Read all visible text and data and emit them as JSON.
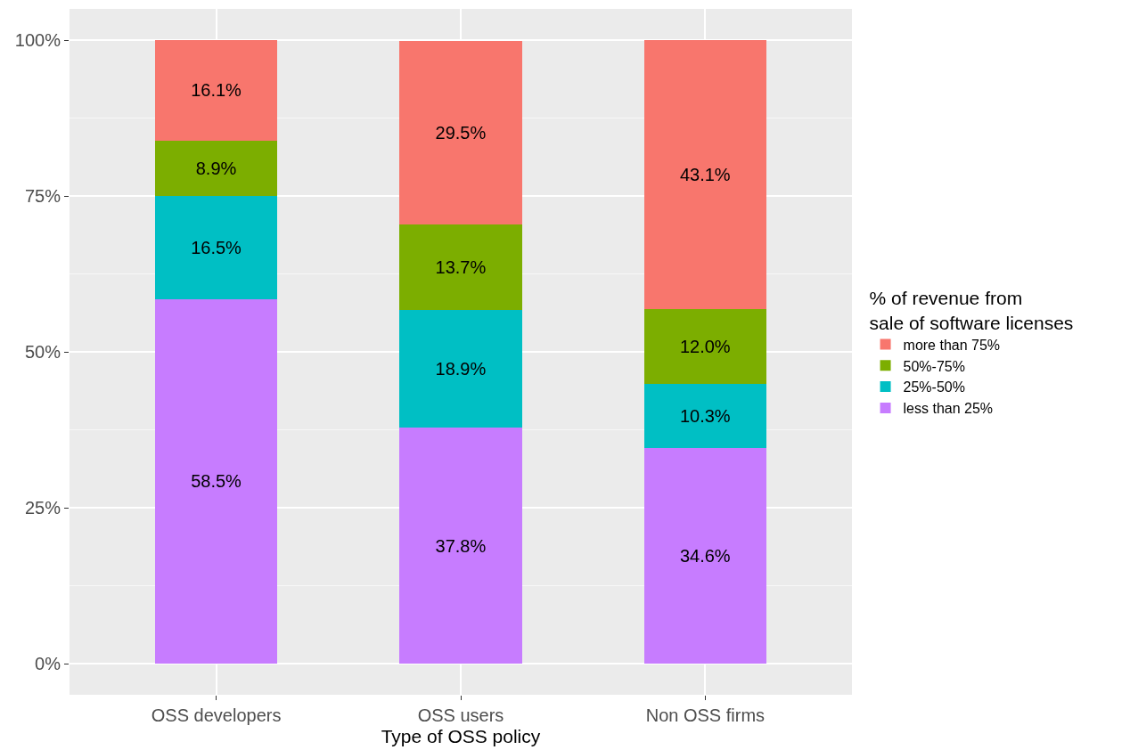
{
  "chart_data": {
    "type": "bar",
    "stacked": true,
    "xlabel": "Type of OSS policy",
    "legend_title": "% of revenue from\nsale of software licenses",
    "legend": "right",
    "grid": true,
    "categories": [
      "OSS developers",
      "OSS users",
      "Non OSS firms"
    ],
    "ylim": [
      -5,
      105
    ],
    "yticks": [
      {
        "value": 0,
        "label": "0%"
      },
      {
        "value": 25,
        "label": "25%"
      },
      {
        "value": 50,
        "label": "50%"
      },
      {
        "value": 75,
        "label": "75%"
      },
      {
        "value": 100,
        "label": "100%"
      }
    ],
    "series": [
      {
        "name": "less than 25%",
        "color": "#c77cff",
        "values": [
          58.5,
          37.8,
          34.6
        ],
        "value_labels": [
          "58.5%",
          "37.8%",
          "34.6%"
        ]
      },
      {
        "name": "25%-50%",
        "color": "#00bfc4",
        "values": [
          16.5,
          18.9,
          10.3
        ],
        "value_labels": [
          "16.5%",
          "18.9%",
          "10.3%"
        ]
      },
      {
        "name": "50%-75%",
        "color": "#7cae00",
        "values": [
          8.9,
          13.7,
          12.0
        ],
        "value_labels": [
          "8.9%",
          "13.7%",
          "12.0%"
        ]
      },
      {
        "name": "more than 75%",
        "color": "#f8766d",
        "values": [
          16.1,
          29.5,
          43.1
        ],
        "value_labels": [
          "16.1%",
          "29.5%",
          "43.1%"
        ]
      }
    ]
  }
}
